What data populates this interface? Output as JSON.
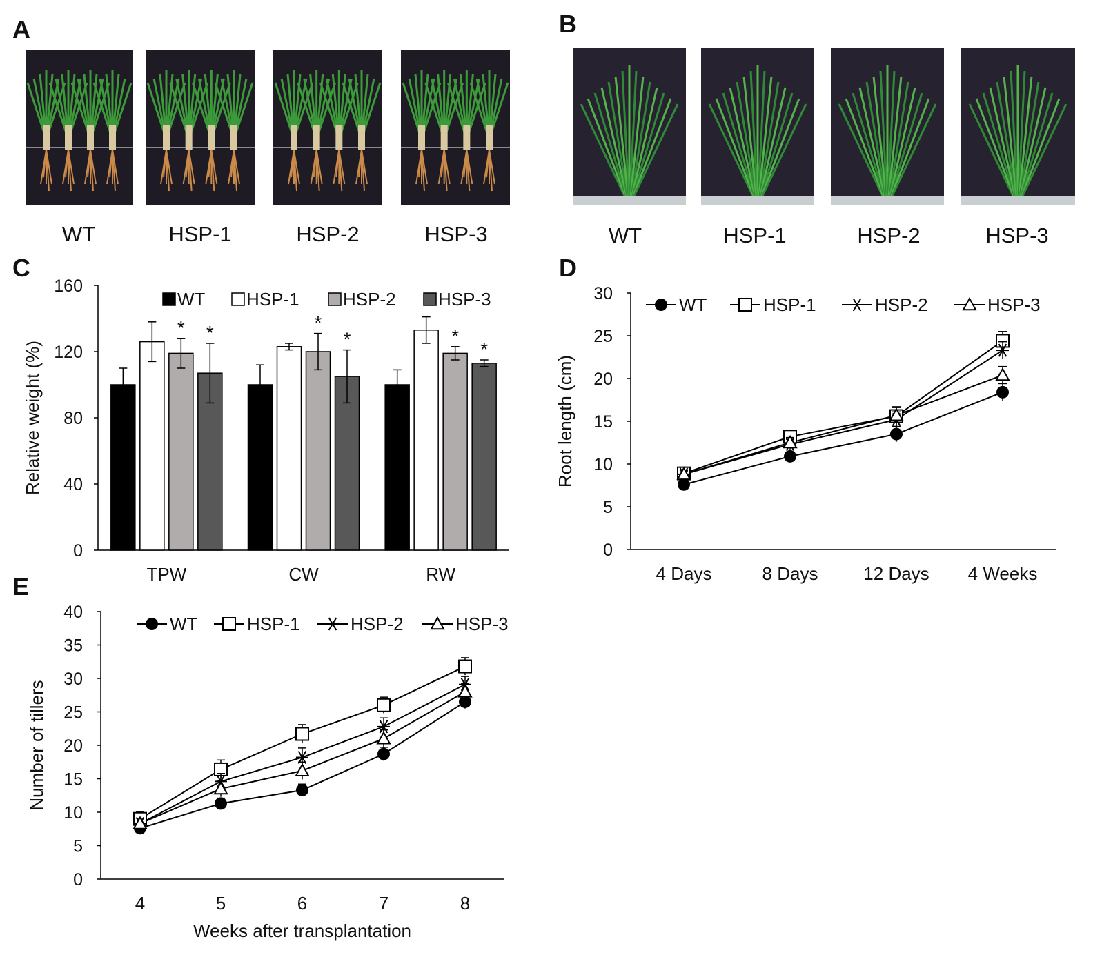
{
  "panel_a": {
    "letter": "A",
    "photos": [
      {
        "label": "WT",
        "plants": 4
      },
      {
        "label": "HSP-1",
        "plants": 4
      },
      {
        "label": "HSP-2",
        "plants": 4
      },
      {
        "label": "HSP-3",
        "plants": 4
      }
    ]
  },
  "panel_b": {
    "letter": "B",
    "photos": [
      {
        "label": "WT"
      },
      {
        "label": "HSP-1"
      },
      {
        "label": "HSP-2"
      },
      {
        "label": "HSP-3"
      }
    ]
  },
  "colors": {
    "WT": "#000000",
    "HSP-1": "#ffffff",
    "HSP-2": "#b0acab",
    "HSP-3": "#585858",
    "leaf": "#3c9a3a",
    "root": "#c98a4a"
  },
  "chart_data": [
    {
      "id": "C",
      "letter": "C",
      "type": "bar",
      "title": "",
      "xlabel": "",
      "ylabel": "Relative weight (%)",
      "ylim": [
        0,
        160
      ],
      "yticks": [
        0,
        40,
        80,
        120,
        160
      ],
      "categories": [
        "TPW",
        "CW",
        "RW"
      ],
      "series": [
        {
          "name": "WT",
          "values": [
            100,
            100,
            100
          ],
          "errors": [
            10,
            12,
            9
          ],
          "sig": [
            false,
            false,
            false
          ]
        },
        {
          "name": "HSP-1",
          "values": [
            126,
            123,
            133
          ],
          "errors": [
            12,
            2,
            8
          ],
          "sig": [
            false,
            false,
            false
          ]
        },
        {
          "name": "HSP-2",
          "values": [
            119,
            120,
            119
          ],
          "errors": [
            9,
            11,
            4
          ],
          "sig": [
            true,
            true,
            true
          ]
        },
        {
          "name": "HSP-3",
          "values": [
            107,
            105,
            113
          ],
          "errors": [
            18,
            16,
            2
          ],
          "sig": [
            true,
            true,
            true
          ]
        }
      ],
      "sig_mark": "*",
      "legend_position": "top"
    },
    {
      "id": "D",
      "letter": "D",
      "type": "line",
      "title": "",
      "xlabel": "",
      "ylabel": "Root length (cm)",
      "ylim": [
        0,
        30
      ],
      "yticks": [
        0,
        5,
        10,
        15,
        20,
        25,
        30
      ],
      "categories": [
        "4 Days",
        "8 Days",
        "12 Days",
        "4 Weeks"
      ],
      "series": [
        {
          "name": "WT",
          "marker": "circle",
          "values": [
            7.6,
            10.9,
            13.5,
            18.4
          ],
          "errors": [
            0.4,
            0.5,
            0.9,
            1.0
          ]
        },
        {
          "name": "HSP-1",
          "marker": "square",
          "values": [
            8.9,
            13.2,
            15.6,
            24.4
          ],
          "errors": [
            0.4,
            0.5,
            1.1,
            1.1
          ]
        },
        {
          "name": "HSP-2",
          "marker": "star",
          "values": [
            8.8,
            12.3,
            15.2,
            23.3
          ],
          "errors": [
            0.4,
            0.6,
            0.9,
            1.0
          ]
        },
        {
          "name": "HSP-3",
          "marker": "triangle",
          "values": [
            8.8,
            12.5,
            15.7,
            20.4
          ],
          "errors": [
            0.4,
            0.6,
            0.9,
            1.0
          ]
        }
      ],
      "legend_position": "top"
    },
    {
      "id": "E",
      "letter": "E",
      "type": "line",
      "title": "",
      "xlabel": "Weeks after transplantation",
      "ylabel": "Number of tillers",
      "ylim": [
        0,
        40
      ],
      "yticks": [
        0,
        5,
        10,
        15,
        20,
        25,
        30,
        35,
        40
      ],
      "categories": [
        "4",
        "5",
        "6",
        "7",
        "8"
      ],
      "series": [
        {
          "name": "WT",
          "marker": "circle",
          "values": [
            7.6,
            11.3,
            13.3,
            18.7,
            26.5
          ],
          "errors": [
            0.6,
            0.8,
            0.9,
            1.0,
            1.0
          ]
        },
        {
          "name": "HSP-1",
          "marker": "square",
          "values": [
            9.0,
            16.4,
            21.7,
            26.0,
            31.8
          ],
          "errors": [
            1.1,
            1.4,
            1.4,
            1.2,
            1.3
          ]
        },
        {
          "name": "HSP-2",
          "marker": "star",
          "values": [
            8.3,
            14.6,
            18.2,
            22.8,
            29.1
          ],
          "errors": [
            0.8,
            1.2,
            1.4,
            1.3,
            1.2
          ]
        },
        {
          "name": "HSP-3",
          "marker": "triangle",
          "values": [
            8.3,
            13.5,
            16.2,
            21.0,
            28.0
          ],
          "errors": [
            0.8,
            1.2,
            1.3,
            1.3,
            1.2
          ]
        }
      ],
      "legend_position": "top"
    }
  ]
}
